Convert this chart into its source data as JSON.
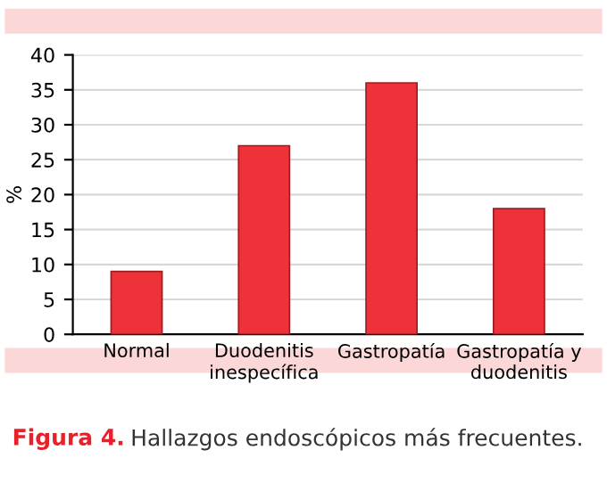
{
  "chart_data": {
    "type": "bar",
    "title": "Figura 4.",
    "subtitle": "Hallazgos endoscópicos más frecuentes.",
    "ylabel": "%",
    "categories": [
      "Normal",
      "Duodenitis\ninespecífica",
      "Gastropatía",
      "Gastropatía y\nduodenitis"
    ],
    "values": [
      9,
      27,
      36,
      18
    ],
    "color": "#ee3239",
    "ylim": [
      0,
      40
    ],
    "yticks": [
      0,
      5,
      10,
      15,
      20,
      25,
      30,
      35,
      40
    ],
    "grid": "y"
  }
}
